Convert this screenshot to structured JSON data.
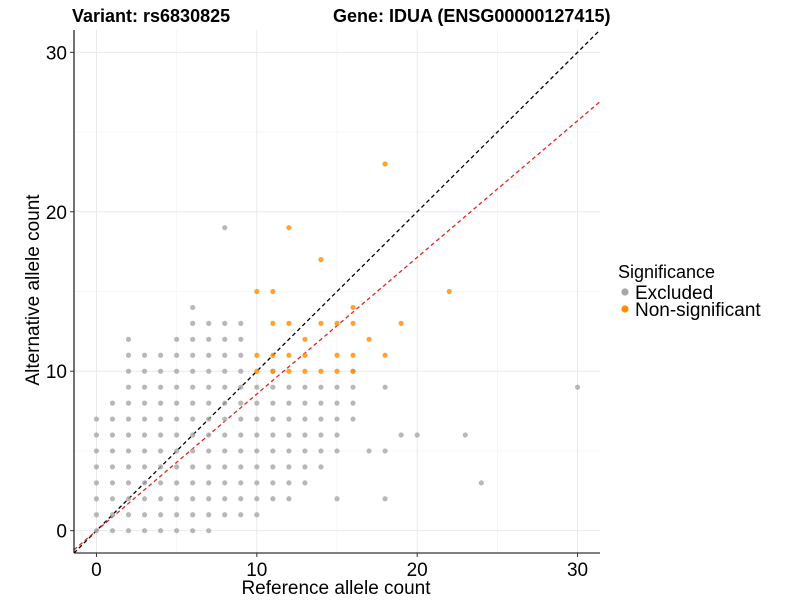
{
  "chart_data": {
    "type": "scatter",
    "title_left": "Variant: rs6830825",
    "title_right": "Gene: IDUA (ENSG00000127415)",
    "xlabel": "Reference allele count",
    "ylabel": "Alternative allele count",
    "xlim": [
      -1.4,
      31.4
    ],
    "ylim": [
      -1.4,
      31.4
    ],
    "xticks": [
      0,
      10,
      20,
      30
    ],
    "yticks": [
      0,
      10,
      20,
      30
    ],
    "grid": true,
    "legend": {
      "title": "Significance",
      "placement": "right",
      "entries": [
        {
          "label": "Excluded",
          "color": "#a6a6a6"
        },
        {
          "label": "Non-significant",
          "color": "#ff8c00"
        }
      ]
    },
    "reference_lines": [
      {
        "name": "y = x",
        "slope": 1.0,
        "intercept": 0,
        "color": "#000000",
        "dash": true
      },
      {
        "name": "expected ratio",
        "slope": 0.857,
        "intercept": 0,
        "color": "#e8231c",
        "dash": true
      }
    ],
    "series": [
      {
        "name": "Excluded",
        "color": "#a6a6a6",
        "points": [
          [
            0,
            0
          ],
          [
            0,
            1
          ],
          [
            0,
            2
          ],
          [
            0,
            3
          ],
          [
            0,
            4
          ],
          [
            0,
            5
          ],
          [
            0,
            6
          ],
          [
            0,
            7
          ],
          [
            1,
            0
          ],
          [
            1,
            1
          ],
          [
            1,
            2
          ],
          [
            1,
            3
          ],
          [
            1,
            4
          ],
          [
            1,
            5
          ],
          [
            1,
            6
          ],
          [
            1,
            7
          ],
          [
            1,
            8
          ],
          [
            2,
            0
          ],
          [
            2,
            1
          ],
          [
            2,
            2
          ],
          [
            2,
            3
          ],
          [
            2,
            4
          ],
          [
            2,
            5
          ],
          [
            2,
            6
          ],
          [
            2,
            7
          ],
          [
            2,
            8
          ],
          [
            2,
            9
          ],
          [
            2,
            10
          ],
          [
            2,
            11
          ],
          [
            2,
            12
          ],
          [
            3,
            0
          ],
          [
            3,
            1
          ],
          [
            3,
            2
          ],
          [
            3,
            3
          ],
          [
            3,
            4
          ],
          [
            3,
            5
          ],
          [
            3,
            6
          ],
          [
            3,
            7
          ],
          [
            3,
            8
          ],
          [
            3,
            9
          ],
          [
            3,
            10
          ],
          [
            3,
            11
          ],
          [
            4,
            0
          ],
          [
            4,
            1
          ],
          [
            4,
            2
          ],
          [
            4,
            3
          ],
          [
            4,
            4
          ],
          [
            4,
            5
          ],
          [
            4,
            6
          ],
          [
            4,
            7
          ],
          [
            4,
            8
          ],
          [
            4,
            9
          ],
          [
            4,
            10
          ],
          [
            4,
            11
          ],
          [
            5,
            0
          ],
          [
            5,
            1
          ],
          [
            5,
            2
          ],
          [
            5,
            3
          ],
          [
            5,
            4
          ],
          [
            5,
            5
          ],
          [
            5,
            6
          ],
          [
            5,
            7
          ],
          [
            5,
            8
          ],
          [
            5,
            9
          ],
          [
            5,
            10
          ],
          [
            5,
            11
          ],
          [
            5,
            12
          ],
          [
            6,
            0
          ],
          [
            6,
            1
          ],
          [
            6,
            2
          ],
          [
            6,
            3
          ],
          [
            6,
            4
          ],
          [
            6,
            5
          ],
          [
            6,
            6
          ],
          [
            6,
            7
          ],
          [
            6,
            8
          ],
          [
            6,
            9
          ],
          [
            6,
            10
          ],
          [
            6,
            11
          ],
          [
            6,
            12
          ],
          [
            6,
            13
          ],
          [
            6,
            14
          ],
          [
            7,
            0
          ],
          [
            7,
            1
          ],
          [
            7,
            2
          ],
          [
            7,
            3
          ],
          [
            7,
            4
          ],
          [
            7,
            5
          ],
          [
            7,
            6
          ],
          [
            7,
            7
          ],
          [
            7,
            8
          ],
          [
            7,
            9
          ],
          [
            7,
            10
          ],
          [
            7,
            11
          ],
          [
            7,
            12
          ],
          [
            7,
            13
          ],
          [
            8,
            1
          ],
          [
            8,
            2
          ],
          [
            8,
            3
          ],
          [
            8,
            4
          ],
          [
            8,
            5
          ],
          [
            8,
            6
          ],
          [
            8,
            7
          ],
          [
            8,
            8
          ],
          [
            8,
            9
          ],
          [
            8,
            10
          ],
          [
            8,
            11
          ],
          [
            8,
            12
          ],
          [
            8,
            13
          ],
          [
            8,
            19
          ],
          [
            9,
            1
          ],
          [
            9,
            2
          ],
          [
            9,
            3
          ],
          [
            9,
            4
          ],
          [
            9,
            5
          ],
          [
            9,
            6
          ],
          [
            9,
            7
          ],
          [
            9,
            8
          ],
          [
            9,
            9
          ],
          [
            9,
            10
          ],
          [
            9,
            11
          ],
          [
            9,
            12
          ],
          [
            9,
            13
          ],
          [
            10,
            1
          ],
          [
            10,
            2
          ],
          [
            10,
            3
          ],
          [
            10,
            4
          ],
          [
            10,
            5
          ],
          [
            10,
            6
          ],
          [
            10,
            7
          ],
          [
            10,
            8
          ],
          [
            10,
            9
          ],
          [
            11,
            2
          ],
          [
            11,
            3
          ],
          [
            11,
            4
          ],
          [
            11,
            5
          ],
          [
            11,
            6
          ],
          [
            11,
            7
          ],
          [
            11,
            8
          ],
          [
            11,
            9
          ],
          [
            11,
            10
          ],
          [
            12,
            2
          ],
          [
            12,
            3
          ],
          [
            12,
            4
          ],
          [
            12,
            5
          ],
          [
            12,
            6
          ],
          [
            12,
            7
          ],
          [
            12,
            8
          ],
          [
            12,
            9
          ],
          [
            13,
            3
          ],
          [
            13,
            4
          ],
          [
            13,
            5
          ],
          [
            13,
            6
          ],
          [
            13,
            7
          ],
          [
            13,
            8
          ],
          [
            13,
            9
          ],
          [
            14,
            4
          ],
          [
            14,
            5
          ],
          [
            14,
            6
          ],
          [
            14,
            7
          ],
          [
            14,
            8
          ],
          [
            14,
            9
          ],
          [
            15,
            2
          ],
          [
            15,
            5
          ],
          [
            15,
            6
          ],
          [
            15,
            7
          ],
          [
            15,
            8
          ],
          [
            15,
            9
          ],
          [
            16,
            7
          ],
          [
            16,
            8
          ],
          [
            16,
            9
          ],
          [
            16,
            10
          ],
          [
            17,
            5
          ],
          [
            18,
            2
          ],
          [
            18,
            5
          ],
          [
            18,
            9
          ],
          [
            19,
            6
          ],
          [
            20,
            6
          ],
          [
            23,
            6
          ],
          [
            24,
            3
          ],
          [
            30,
            9
          ]
        ]
      },
      {
        "name": "Non-significant",
        "color": "#ff8c00",
        "points": [
          [
            10,
            10
          ],
          [
            10,
            11
          ],
          [
            10,
            15
          ],
          [
            11,
            10
          ],
          [
            11,
            11
          ],
          [
            11,
            13
          ],
          [
            11,
            15
          ],
          [
            12,
            10
          ],
          [
            12,
            11
          ],
          [
            12,
            13
          ],
          [
            12,
            19
          ],
          [
            13,
            10
          ],
          [
            13,
            11
          ],
          [
            13,
            12
          ],
          [
            14,
            10
          ],
          [
            14,
            13
          ],
          [
            14,
            17
          ],
          [
            15,
            10
          ],
          [
            15,
            11
          ],
          [
            15,
            13
          ],
          [
            16,
            10
          ],
          [
            16,
            11
          ],
          [
            16,
            13
          ],
          [
            16,
            14
          ],
          [
            17,
            12
          ],
          [
            18,
            11
          ],
          [
            18,
            23
          ],
          [
            19,
            13
          ],
          [
            22,
            15
          ]
        ]
      }
    ]
  }
}
